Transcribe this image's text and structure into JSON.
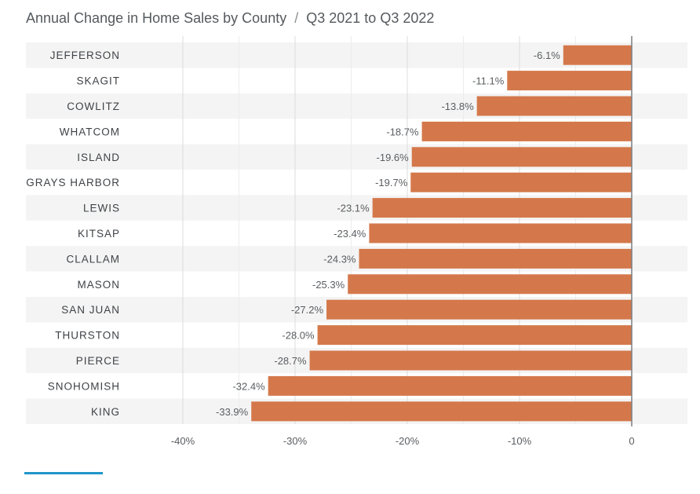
{
  "colors": {
    "bar": "#d4784b",
    "row_band": "#f4f4f4",
    "grid": "#dcdcdc",
    "zero_line": "#7a7e82",
    "label": "#3f4347",
    "value_label": "#5a5d60",
    "title": "#555a5e",
    "accent": "#1f95c9"
  },
  "header": {
    "title": "Annual Change in Home Sales by County",
    "separator": "/",
    "period": "Q3 2021 to Q3 2022"
  },
  "chart_data": {
    "type": "bar",
    "orientation": "horizontal",
    "title": "Annual Change in Home Sales by County",
    "subtitle": "Q3 2021 to Q3 2022",
    "categories": [
      "JEFFERSON",
      "SKAGIT",
      "COWLITZ",
      "WHATCOM",
      "ISLAND",
      "GRAYS HARBOR",
      "LEWIS",
      "KITSAP",
      "CLALLAM",
      "MASON",
      "SAN JUAN",
      "THURSTON",
      "PIERCE",
      "SNOHOMISH",
      "KING"
    ],
    "values": [
      -6.1,
      -11.1,
      -13.8,
      -18.7,
      -19.6,
      -19.7,
      -23.1,
      -23.4,
      -24.3,
      -25.3,
      -27.2,
      -28.0,
      -28.7,
      -32.4,
      -33.9
    ],
    "value_labels": [
      "-6.1%",
      "-11.1%",
      "-13.8%",
      "-18.7%",
      "-19.6%",
      "-19.7%",
      "-23.1%",
      "-23.4%",
      "-24.3%",
      "-25.3%",
      "-27.2%",
      "-28.0%",
      "-28.7%",
      "-32.4%",
      "-33.9%"
    ],
    "xlim": [
      -40,
      0
    ],
    "xticks": [
      -40,
      -30,
      -20,
      -10,
      0
    ],
    "xtick_labels": [
      "-40%",
      "-30%",
      "-20%",
      "-10%",
      "0"
    ],
    "xlabel": "",
    "ylabel": "",
    "grid": true
  }
}
